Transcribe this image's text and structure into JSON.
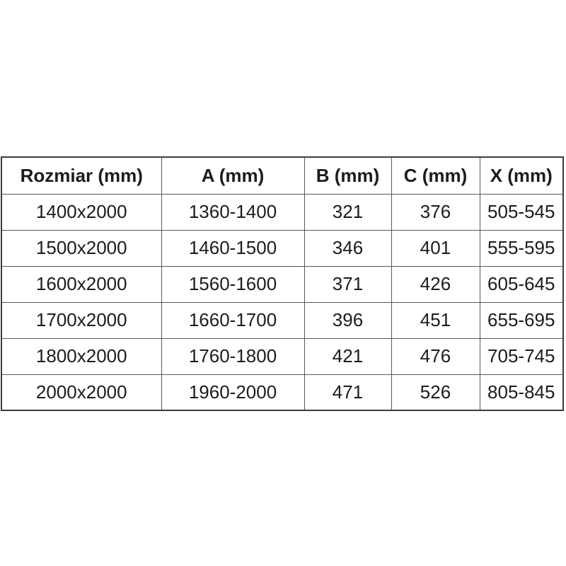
{
  "table": {
    "headers": [
      "Rozmiar (mm)",
      "A (mm)",
      "B (mm)",
      "C (mm)",
      "X (mm)"
    ],
    "rows": [
      [
        "1400x2000",
        "1360-1400",
        "321",
        "376",
        "505-545"
      ],
      [
        "1500x2000",
        "1460-1500",
        "346",
        "401",
        "555-595"
      ],
      [
        "1600x2000",
        "1560-1600",
        "371",
        "426",
        "605-645"
      ],
      [
        "1700x2000",
        "1660-1700",
        "396",
        "451",
        "655-695"
      ],
      [
        "1800x2000",
        "1760-1800",
        "421",
        "476",
        "705-745"
      ],
      [
        "2000x2000",
        "1960-2000",
        "471",
        "526",
        "805-845"
      ]
    ]
  },
  "colors": {
    "background": "#ffffff",
    "border_outer": "#3c3c3c",
    "border_inner": "#595959",
    "text": "#1c1c1c"
  }
}
